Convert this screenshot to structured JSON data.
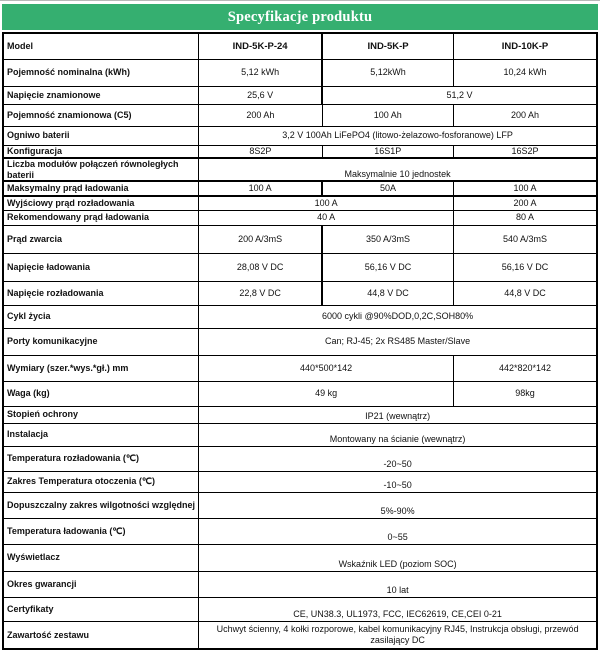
{
  "title_bar": {
    "title": "Specyfikacje produktu",
    "bg_color": "#35AF70",
    "text_color": "#FFFFFF"
  },
  "table": {
    "rows": [
      {
        "label": "Model",
        "bold_values": true,
        "cells": [
          {
            "text": "IND-5K-P-24"
          },
          {
            "text": "IND-5K-P"
          },
          {
            "text": "IND-10K-P"
          }
        ]
      },
      {
        "label": "Pojemność nominalna (kWh)",
        "cells": [
          {
            "text": "5,12 kWh"
          },
          {
            "text": "5,12kWh"
          },
          {
            "text": "10,24 kWh"
          }
        ]
      },
      {
        "label": "Napięcie znamionowe",
        "cells": [
          {
            "text": "25,6 V"
          },
          {
            "text": "51,2 V",
            "span": 2
          }
        ]
      },
      {
        "label": "Pojemność znamionowa (C5)",
        "cells": [
          {
            "text": "200 Ah"
          },
          {
            "text": "100 Ah"
          },
          {
            "text": "200 Ah"
          }
        ]
      },
      {
        "label": "Ogniwo baterii",
        "cells": [
          {
            "text": "3,2 V 100Ah LiFePO4 (litowo-żelazowo-fosforanowe) LFP",
            "span": 3
          }
        ]
      },
      {
        "label": "Konfiguracja",
        "cells": [
          {
            "text": "8S2P"
          },
          {
            "text": "16S1P"
          },
          {
            "text": "16S2P"
          }
        ]
      },
      {
        "label": "Liczba modułów połączeń równoległych baterii",
        "cells": [
          {
            "text": "Maksymalnie 10 jednostek",
            "span": 3
          }
        ]
      },
      {
        "label": "Maksymalny prąd ładowania",
        "cells": [
          {
            "text": "100 A"
          },
          {
            "text": "50A"
          },
          {
            "text": "100 A"
          }
        ]
      },
      {
        "label": "Wyjściowy prąd rozładowania",
        "cells": [
          {
            "text": "100 A",
            "span": 2
          },
          {
            "text": "200 A"
          }
        ]
      },
      {
        "label": "Rekomendowany prąd ładowania",
        "cells": [
          {
            "text": "40 A",
            "span": 2
          },
          {
            "text": "80 A"
          }
        ]
      },
      {
        "label": "Prąd zwarcia",
        "cells": [
          {
            "text": "200 A/3mS"
          },
          {
            "text": "350 A/3mS"
          },
          {
            "text": "540 A/3mS"
          }
        ]
      },
      {
        "label": "Napięcie ładowania",
        "cells": [
          {
            "text": "28,08 V DC"
          },
          {
            "text": "56,16 V DC"
          },
          {
            "text": "56,16 V DC"
          }
        ]
      },
      {
        "label": "Napięcie rozładowania",
        "cells": [
          {
            "text": "22,8 V DC"
          },
          {
            "text": "44,8 V DC"
          },
          {
            "text": "44,8 V DC"
          }
        ]
      },
      {
        "label": "Cykl życia",
        "cells": [
          {
            "text": "6000 cykli @90%DOD,0,2C,SOH80%",
            "span": 3
          }
        ]
      },
      {
        "label": "Porty komunikacyjne",
        "cells": [
          {
            "text": "Can; RJ-45; 2x RS485 Master/Slave",
            "span": 3
          }
        ]
      },
      {
        "label": "Wymiary (szer.*wys.*gł.) mm",
        "cells": [
          {
            "text": "440*500*142",
            "span": 2
          },
          {
            "text": "442*820*142"
          }
        ]
      },
      {
        "label": "Waga (kg)",
        "cells": [
          {
            "text": "49 kg",
            "span": 2
          },
          {
            "text": "98kg"
          }
        ]
      },
      {
        "label": "Stopień ochrony",
        "cells": [
          {
            "text": "IP21 (wewnątrz)",
            "span": 3
          }
        ]
      },
      {
        "label": "Instalacja",
        "cells": [
          {
            "text": "Montowany na ścianie (wewnątrz)",
            "span": 3
          }
        ]
      },
      {
        "label": "Temperatura rozładowania (℃)",
        "cells": [
          {
            "text": "-20~50",
            "span": 3
          }
        ]
      },
      {
        "label": "Zakres Temperatura otoczenia (℃)",
        "cells": [
          {
            "text": "-10~50",
            "span": 3
          }
        ]
      },
      {
        "label": "Dopuszczalny zakres wilgotności względnej",
        "cells": [
          {
            "text": "5%-90%",
            "span": 3
          }
        ]
      },
      {
        "label": "Temperatura ładowania (℃)",
        "cells": [
          {
            "text": "0~55",
            "span": 3
          }
        ]
      },
      {
        "label": "Wyświetlacz",
        "cells": [
          {
            "text": "Wskaźnik LED (poziom SOC)",
            "span": 3
          }
        ]
      },
      {
        "label": "Okres gwarancji",
        "cells": [
          {
            "text": "10 lat",
            "span": 3
          }
        ]
      },
      {
        "label": "Certyfikaty",
        "cells": [
          {
            "text": "CE, UN38.3, UL1973, FCC, IEC62619, CE,CEI 0-21",
            "span": 3
          }
        ]
      },
      {
        "label": "Zawartość zestawu",
        "cells": [
          {
            "text": "Uchwyt ścienny, 4 kołki rozporowe, kabel komunikacyjny RJ45, Instrukcja obsługi, przewód zasilający DC",
            "span": 3
          }
        ]
      }
    ]
  }
}
